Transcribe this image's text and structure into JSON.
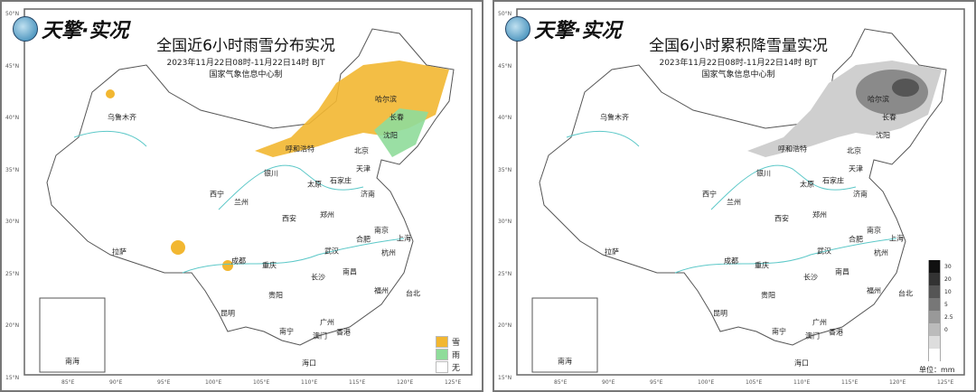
{
  "logo_text": "天擎·实况",
  "subtitle_date": "2023年11月22日08时-11月22日14时 BJT",
  "producer": "国家气象信息中心制",
  "left_map": {
    "title": "全国近6小时雨雪分布实况",
    "legend": [
      {
        "label": "雪",
        "color": "#f2b731"
      },
      {
        "label": "雨",
        "color": "#8fdc9a"
      },
      {
        "label": "无",
        "color": "#ffffff"
      }
    ]
  },
  "right_map": {
    "title": "全国6小时累积降雪量实况",
    "legend_labels": [
      "30",
      "20",
      "10",
      "5",
      "2.5",
      "0"
    ],
    "legend_colors": [
      "#111111",
      "#333333",
      "#555555",
      "#777777",
      "#999999",
      "#bbbbbb",
      "#dddddd",
      "#ffffff"
    ],
    "unit_label": "单位：mm"
  },
  "lat_ticks": [
    "50°N",
    "45°N",
    "40°N",
    "35°N",
    "30°N",
    "25°N",
    "20°N",
    "15°N"
  ],
  "lon_ticks": [
    "85°E",
    "90°E",
    "95°E",
    "100°E",
    "105°E",
    "110°E",
    "115°E",
    "120°E",
    "125°E"
  ],
  "cities": [
    "哈尔滨",
    "长春",
    "沈阳",
    "乌鲁木齐",
    "呼和浩特",
    "北京",
    "天津",
    "石家庄",
    "太原",
    "济南",
    "银川",
    "兰州",
    "西宁",
    "西安",
    "郑州",
    "南京",
    "合肥",
    "上海",
    "杭州",
    "武汉",
    "成都",
    "重庆",
    "长沙",
    "南昌",
    "拉萨",
    "贵阳",
    "昆明",
    "福州",
    "台北",
    "南宁",
    "广州",
    "香港",
    "澳门",
    "海口"
  ],
  "inset_label": "南海"
}
